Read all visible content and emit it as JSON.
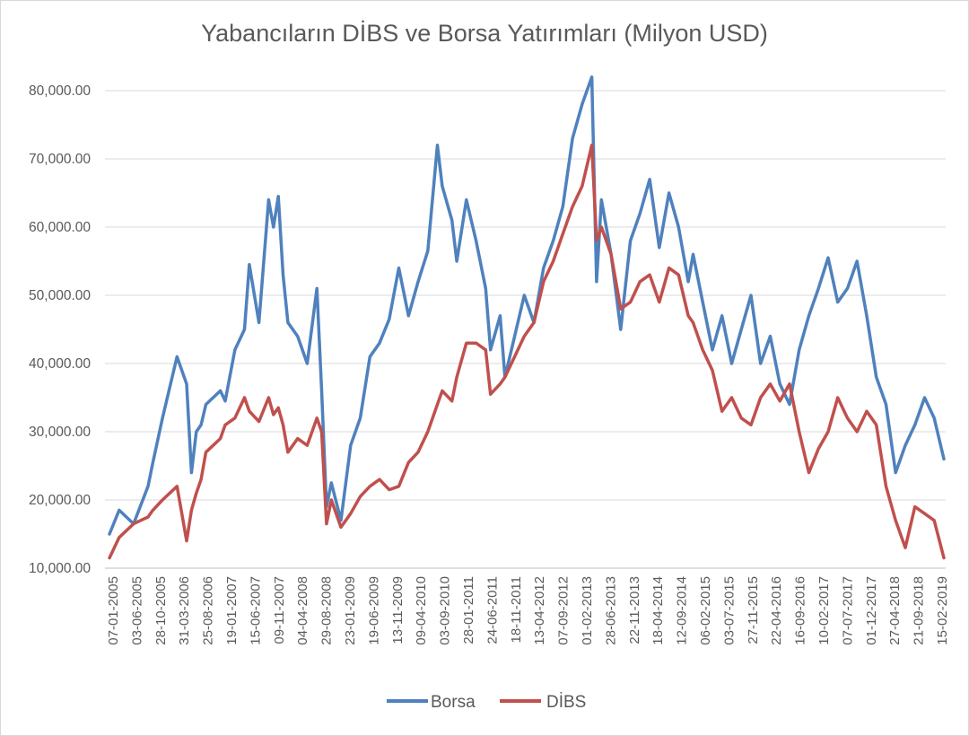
{
  "chart_data": {
    "type": "line",
    "title": "Yabancıların DİBS ve Borsa Yatırımları (Milyon USD)",
    "xlabel": "",
    "ylabel": "",
    "ylim": [
      10000,
      80000
    ],
    "yticks": [
      "10,000.00",
      "20,000.00",
      "30,000.00",
      "40,000.00",
      "50,000.00",
      "60,000.00",
      "70,000.00",
      "80,000.00"
    ],
    "x_tick_labels": [
      "07-01-2005",
      "03-06-2005",
      "28-10-2005",
      "31-03-2006",
      "25-08-2006",
      "19-01-2007",
      "15-06-2007",
      "09-11-2007",
      "04-04-2008",
      "29-08-2008",
      "23-01-2009",
      "19-06-2009",
      "13-11-2009",
      "09-04-2010",
      "03-09-2010",
      "28-01-2011",
      "24-06-2011",
      "18-11-2011",
      "13-04-2012",
      "07-09-2012",
      "01-02-2013",
      "28-06-2013",
      "22-11-2013",
      "18-04-2014",
      "12-09-2014",
      "06-02-2015",
      "03-07-2015",
      "27-11-2015",
      "22-04-2016",
      "16-09-2016",
      "10-02-2017",
      "07-07-2017",
      "01-12-2017",
      "27-04-2018",
      "21-09-2018",
      "15-02-2019"
    ],
    "x": [
      "2005-01",
      "2005-03",
      "2005-06",
      "2005-09",
      "2005-10",
      "2005-12",
      "2006-03",
      "2006-05",
      "2006-06",
      "2006-07",
      "2006-08",
      "2006-09",
      "2006-12",
      "2007-01",
      "2007-03",
      "2007-05",
      "2007-06",
      "2007-08",
      "2007-10",
      "2007-11",
      "2007-12",
      "2008-01",
      "2008-02",
      "2008-04",
      "2008-06",
      "2008-08",
      "2008-09",
      "2008-10",
      "2008-11",
      "2009-01",
      "2009-03",
      "2009-05",
      "2009-07",
      "2009-09",
      "2009-11",
      "2010-01",
      "2010-03",
      "2010-05",
      "2010-07",
      "2010-09",
      "2010-10",
      "2010-12",
      "2011-01",
      "2011-03",
      "2011-05",
      "2011-07",
      "2011-08",
      "2011-10",
      "2011-11",
      "2012-01",
      "2012-03",
      "2012-05",
      "2012-07",
      "2012-09",
      "2012-11",
      "2013-01",
      "2013-03",
      "2013-05",
      "2013-06",
      "2013-07",
      "2013-09",
      "2013-11",
      "2014-01",
      "2014-03",
      "2014-05",
      "2014-07",
      "2014-09",
      "2014-11",
      "2015-01",
      "2015-02",
      "2015-04",
      "2015-06",
      "2015-08",
      "2015-10",
      "2015-12",
      "2016-02",
      "2016-04",
      "2016-06",
      "2016-08",
      "2016-10",
      "2016-12",
      "2017-02",
      "2017-04",
      "2017-06",
      "2017-08",
      "2017-10",
      "2017-12",
      "2018-02",
      "2018-04",
      "2018-06",
      "2018-08",
      "2018-10",
      "2018-12",
      "2019-02",
      "2019-04",
      "2019-06"
    ],
    "series": [
      {
        "name": "Borsa",
        "color": "#4f81bd",
        "values": [
          15000,
          18500,
          16500,
          22000,
          25500,
          32000,
          41000,
          37000,
          24000,
          30000,
          31000,
          34000,
          36000,
          34500,
          42000,
          45000,
          54500,
          46000,
          64000,
          60000,
          64500,
          53000,
          46000,
          44000,
          40000,
          51000,
          36000,
          19000,
          22500,
          17000,
          28000,
          32000,
          41000,
          43000,
          46500,
          54000,
          47000,
          52000,
          56500,
          72000,
          66000,
          61000,
          55000,
          64000,
          58000,
          51000,
          42000,
          47000,
          38000,
          44000,
          50000,
          46000,
          54000,
          58000,
          63000,
          73000,
          78000,
          82000,
          52000,
          64000,
          56000,
          45000,
          58000,
          62000,
          67000,
          57000,
          65000,
          60000,
          52000,
          56000,
          49000,
          42000,
          47000,
          40000,
          45000,
          50000,
          40000,
          44000,
          37000,
          34000,
          42000,
          47000,
          51000,
          55500,
          49000,
          51000,
          55000,
          47000,
          38000,
          34000,
          24000,
          28000,
          31000,
          35000,
          32000,
          26000
        ]
      },
      {
        "name": "DİBS",
        "color": "#c0504d",
        "values": [
          11500,
          14500,
          16500,
          17500,
          18500,
          20000,
          22000,
          14000,
          18500,
          21000,
          23000,
          27000,
          29000,
          31000,
          32000,
          35000,
          33000,
          31500,
          35000,
          32500,
          33500,
          31000,
          27000,
          29000,
          28000,
          32000,
          30000,
          16500,
          20000,
          16000,
          18000,
          20500,
          22000,
          23000,
          21500,
          22000,
          25500,
          27000,
          30000,
          34000,
          36000,
          34500,
          38000,
          43000,
          43000,
          42000,
          35500,
          37000,
          38000,
          41000,
          44000,
          46000,
          52000,
          55000,
          59000,
          63000,
          66000,
          72000,
          58000,
          60000,
          56000,
          48000,
          49000,
          52000,
          53000,
          49000,
          54000,
          53000,
          47000,
          46000,
          42000,
          39000,
          33000,
          35000,
          32000,
          31000,
          35000,
          37000,
          34500,
          37000,
          30000,
          24000,
          27500,
          30000,
          35000,
          32000,
          30000,
          33000,
          31000,
          22000,
          17000,
          13000,
          19000,
          18000,
          17000,
          11500
        ]
      }
    ],
    "grid": true,
    "legend": "bottom"
  }
}
